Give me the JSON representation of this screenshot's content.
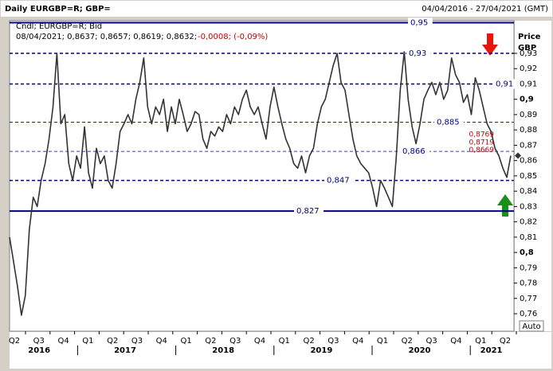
{
  "chart_data": {
    "type": "line",
    "title": "Daily EURGBP=R; GBP=",
    "date_range": "04/04/2016 - 27/04/2021 (GMT)",
    "legend_title": "Cndl; EURGBP=R; Bid",
    "info_line": "08/04/2021; 0,8637; 0,8657; 0,8619; 0,8632;",
    "info_change": "-0,0008; (-0,09%)",
    "y_axis_label": "Price",
    "y_axis_unit": "GBP",
    "scale_button": "Auto",
    "series": [
      {
        "name": "EURGBP=R",
        "color": "#333333",
        "values": [
          0.81,
          0.794,
          0.778,
          0.759,
          0.772,
          0.815,
          0.836,
          0.83,
          0.847,
          0.858,
          0.874,
          0.895,
          0.93,
          0.884,
          0.89,
          0.858,
          0.847,
          0.863,
          0.855,
          0.882,
          0.852,
          0.842,
          0.868,
          0.858,
          0.863,
          0.847,
          0.842,
          0.858,
          0.879,
          0.884,
          0.89,
          0.884,
          0.9,
          0.911,
          0.927,
          0.895,
          0.884,
          0.895,
          0.89,
          0.9,
          0.879,
          0.895,
          0.884,
          0.9,
          0.89,
          0.879,
          0.884,
          0.892,
          0.89,
          0.874,
          0.868,
          0.879,
          0.876,
          0.882,
          0.879,
          0.89,
          0.884,
          0.895,
          0.89,
          0.9,
          0.906,
          0.895,
          0.89,
          0.895,
          0.884,
          0.874,
          0.895,
          0.908,
          0.895,
          0.884,
          0.874,
          0.868,
          0.858,
          0.855,
          0.863,
          0.852,
          0.863,
          0.868,
          0.884,
          0.895,
          0.9,
          0.911,
          0.922,
          0.93,
          0.911,
          0.906,
          0.89,
          0.874,
          0.863,
          0.858,
          0.855,
          0.852,
          0.842,
          0.83,
          0.847,
          0.842,
          0.836,
          0.83,
          0.863,
          0.906,
          0.931,
          0.9,
          0.882,
          0.871,
          0.884,
          0.9,
          0.906,
          0.911,
          0.903,
          0.911,
          0.9,
          0.906,
          0.927,
          0.916,
          0.911,
          0.898,
          0.903,
          0.89,
          0.914,
          0.906,
          0.895,
          0.884,
          0.879,
          0.868,
          0.863,
          0.855,
          0.849,
          0.8632
        ]
      }
    ],
    "ylim": [
      0.7486,
      0.9513
    ],
    "yticks": [
      {
        "value": 0.93,
        "label": "0,93"
      },
      {
        "value": 0.92,
        "label": "0,92"
      },
      {
        "value": 0.91,
        "label": "0,91"
      },
      {
        "value": 0.9,
        "label": "0,9"
      },
      {
        "value": 0.89,
        "label": "0,89"
      },
      {
        "value": 0.88,
        "label": "0,88"
      },
      {
        "value": 0.87,
        "label": "0,87"
      },
      {
        "value": 0.86,
        "label": "0,86"
      },
      {
        "value": 0.85,
        "label": "0,85"
      },
      {
        "value": 0.84,
        "label": "0,84"
      },
      {
        "value": 0.83,
        "label": "0,83"
      },
      {
        "value": 0.82,
        "label": "0,82"
      },
      {
        "value": 0.81,
        "label": "0,81"
      },
      {
        "value": 0.8,
        "label": "0,8"
      },
      {
        "value": 0.79,
        "label": "0,79"
      },
      {
        "value": 0.78,
        "label": "0,78"
      },
      {
        "value": 0.77,
        "label": "0,77"
      },
      {
        "value": 0.76,
        "label": "0,76"
      }
    ],
    "quarters": [
      "Q2",
      "Q3",
      "Q4",
      "Q1",
      "Q2",
      "Q3",
      "Q4",
      "Q1",
      "Q2",
      "Q3",
      "Q4",
      "Q1",
      "Q2",
      "Q3",
      "Q4",
      "Q1",
      "Q2",
      "Q3",
      "Q4",
      "Q1",
      "Q2"
    ],
    "years": [
      "2016",
      "2017",
      "2018",
      "2019",
      "2020",
      "2021"
    ],
    "levels": [
      {
        "value": 0.95,
        "label": "0,95",
        "style": "solid"
      },
      {
        "value": 0.93,
        "label": "0,93",
        "style": "dashed"
      },
      {
        "value": 0.91,
        "label": "0,91",
        "style": "dashed"
      },
      {
        "value": 0.885,
        "label": "0,885",
        "style": "thin"
      },
      {
        "value": 0.866,
        "label": "0,866",
        "style": "thin"
      },
      {
        "value": 0.847,
        "label": "0,847",
        "style": "dashed"
      },
      {
        "value": 0.827,
        "label": "0,827",
        "style": "solid"
      }
    ],
    "price_marks": [
      {
        "value": 0.8769,
        "label": "0,8769"
      },
      {
        "value": 0.8719,
        "label": "0,8719"
      },
      {
        "value": 0.8669,
        "label": "0,8669"
      }
    ]
  }
}
